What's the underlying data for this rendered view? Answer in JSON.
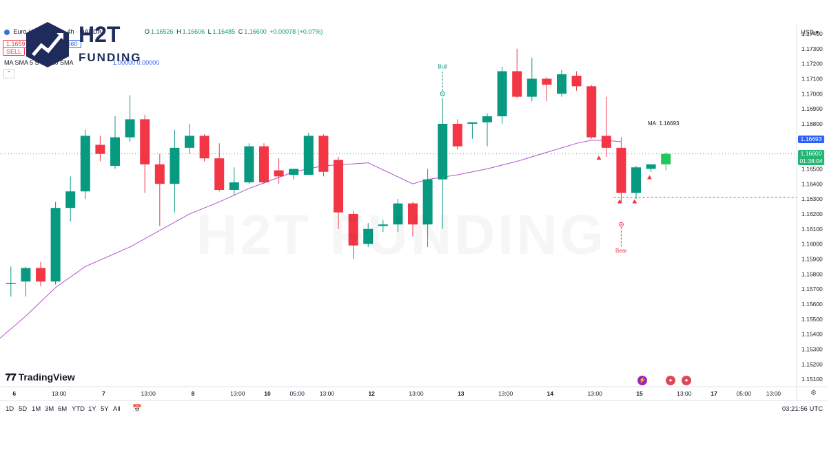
{
  "header": {
    "symbol": "Euro / U.S. Dollar · 4h · OANDA",
    "ohlc": {
      "o": "O",
      "o_val": "1.16526",
      "h": "H",
      "h_val": "1.16606",
      "l": "L",
      "l_val": "1.16485",
      "c": "C",
      "c_val": "1.16600",
      "chg": "+0.00078 (+0.07%)"
    },
    "sell_price": "1.1659",
    "sell_label": "SELL",
    "buy_price": "1.1660",
    "ma_line": "MA SMA 5 S MA 10 SMA",
    "ma_values": "1.00000  0.00000",
    "currency": "USD"
  },
  "brand": {
    "name_top": "H2T",
    "name_bottom": "FUNDING",
    "watermark": "H2T FUNDING",
    "tv_logo": "TradingView"
  },
  "bottom_bar": {
    "ranges": [
      "1D",
      "5D",
      "1M",
      "3M",
      "6M",
      "YTD",
      "1Y",
      "5Y",
      "All"
    ],
    "clock": "03:21:56 UTC"
  },
  "colors": {
    "up": "#089981",
    "down": "#f23645",
    "ma": "#b44fd1",
    "last_up": "#22c55e"
  },
  "chart_data": {
    "type": "candlestick",
    "ylim": [
      1.1505,
      1.1745
    ],
    "yticks": [
      1.151,
      1.152,
      1.153,
      1.154,
      1.155,
      1.156,
      1.157,
      1.158,
      1.159,
      1.16,
      1.161,
      1.162,
      1.163,
      1.164,
      1.165,
      1.166,
      1.167,
      1.168,
      1.169,
      1.17,
      1.171,
      1.172,
      1.173,
      1.174
    ],
    "ytick_labels": [
      "1.15100",
      "1.15200",
      "1.15300",
      "1.15400",
      "1.15500",
      "1.15600",
      "1.15700",
      "1.15800",
      "1.15900",
      "1.16000",
      "1.16100",
      "1.16200",
      "1.16300",
      "1.16400",
      "1.16500",
      "1.16600",
      "1.16700",
      "1.16800",
      "1.16900",
      "1.17000",
      "1.17100",
      "1.17200",
      "1.17300",
      "1.17400"
    ],
    "xticks": [
      {
        "label": "6",
        "idx": 0.5
      },
      {
        "label": "13:00",
        "idx": 3.5
      },
      {
        "label": "7",
        "idx": 6.5
      },
      {
        "label": "13:00",
        "idx": 9.5
      },
      {
        "label": "8",
        "idx": 12.5
      },
      {
        "label": "13:00",
        "idx": 15.5
      },
      {
        "label": "10",
        "idx": 17.5
      },
      {
        "label": "05:00",
        "idx": 19.5
      },
      {
        "label": "13:00",
        "idx": 21.5
      },
      {
        "label": "12",
        "idx": 24.5
      },
      {
        "label": "13:00",
        "idx": 27.5
      },
      {
        "label": "13",
        "idx": 30.5
      },
      {
        "label": "13:00",
        "idx": 33.5
      },
      {
        "label": "14",
        "idx": 36.5
      },
      {
        "label": "13:00",
        "idx": 39.5
      },
      {
        "label": "15",
        "idx": 42.5
      },
      {
        "label": "13:00",
        "idx": 45.5
      },
      {
        "label": "17",
        "idx": 47.5
      },
      {
        "label": "05:00",
        "idx": 49.5
      },
      {
        "label": "13:00",
        "idx": 51.5
      }
    ],
    "candles": [
      {
        "o": 1.1574,
        "h": 1.1585,
        "l": 1.1565,
        "c": 1.1574
      },
      {
        "o": 1.1575,
        "h": 1.1585,
        "l": 1.1565,
        "c": 1.1584
      },
      {
        "o": 1.1584,
        "h": 1.1588,
        "l": 1.1572,
        "c": 1.1575
      },
      {
        "o": 1.1575,
        "h": 1.1628,
        "l": 1.1573,
        "c": 1.1624
      },
      {
        "o": 1.1624,
        "h": 1.1645,
        "l": 1.1615,
        "c": 1.1635
      },
      {
        "o": 1.1635,
        "h": 1.1676,
        "l": 1.163,
        "c": 1.1672
      },
      {
        "o": 1.1666,
        "h": 1.1672,
        "l": 1.1655,
        "c": 1.166
      },
      {
        "o": 1.1652,
        "h": 1.1685,
        "l": 1.165,
        "c": 1.1671
      },
      {
        "o": 1.1671,
        "h": 1.1699,
        "l": 1.1668,
        "c": 1.1683
      },
      {
        "o": 1.1683,
        "h": 1.1686,
        "l": 1.1634,
        "c": 1.1653
      },
      {
        "o": 1.1653,
        "h": 1.166,
        "l": 1.1612,
        "c": 1.164
      },
      {
        "o": 1.164,
        "h": 1.1676,
        "l": 1.1621,
        "c": 1.1664
      },
      {
        "o": 1.1664,
        "h": 1.168,
        "l": 1.166,
        "c": 1.1672
      },
      {
        "o": 1.1672,
        "h": 1.1673,
        "l": 1.1655,
        "c": 1.1657
      },
      {
        "o": 1.1657,
        "h": 1.1667,
        "l": 1.1635,
        "c": 1.1636
      },
      {
        "o": 1.1636,
        "h": 1.1651,
        "l": 1.1632,
        "c": 1.1641
      },
      {
        "o": 1.1641,
        "h": 1.1667,
        "l": 1.164,
        "c": 1.1665
      },
      {
        "o": 1.1665,
        "h": 1.1667,
        "l": 1.164,
        "c": 1.1641
      },
      {
        "o": 1.1649,
        "h": 1.1657,
        "l": 1.164,
        "c": 1.1645
      },
      {
        "o": 1.1646,
        "h": 1.165,
        "l": 1.1643,
        "c": 1.165
      },
      {
        "o": 1.1646,
        "h": 1.1674,
        "l": 1.1646,
        "c": 1.1672
      },
      {
        "o": 1.1672,
        "h": 1.1673,
        "l": 1.1645,
        "c": 1.1648
      },
      {
        "o": 1.1656,
        "h": 1.1658,
        "l": 1.161,
        "c": 1.1621
      },
      {
        "o": 1.162,
        "h": 1.1622,
        "l": 1.159,
        "c": 1.1599
      },
      {
        "o": 1.16,
        "h": 1.1614,
        "l": 1.1598,
        "c": 1.161
      },
      {
        "o": 1.1612,
        "h": 1.1616,
        "l": 1.1608,
        "c": 1.1613
      },
      {
        "o": 1.1613,
        "h": 1.163,
        "l": 1.1608,
        "c": 1.1627
      },
      {
        "o": 1.1627,
        "h": 1.1628,
        "l": 1.1605,
        "c": 1.1613
      },
      {
        "o": 1.1613,
        "h": 1.165,
        "l": 1.1598,
        "c": 1.1643
      },
      {
        "o": 1.1643,
        "h": 1.1697,
        "l": 1.161,
        "c": 1.168
      },
      {
        "o": 1.168,
        "h": 1.1683,
        "l": 1.1663,
        "c": 1.1665
      },
      {
        "o": 1.168,
        "h": 1.1681,
        "l": 1.167,
        "c": 1.1681
      },
      {
        "o": 1.1681,
        "h": 1.1687,
        "l": 1.1665,
        "c": 1.1685
      },
      {
        "o": 1.1685,
        "h": 1.1718,
        "l": 1.168,
        "c": 1.1715
      },
      {
        "o": 1.1715,
        "h": 1.173,
        "l": 1.1697,
        "c": 1.1698
      },
      {
        "o": 1.1698,
        "h": 1.1724,
        "l": 1.1695,
        "c": 1.171
      },
      {
        "o": 1.171,
        "h": 1.1711,
        "l": 1.1695,
        "c": 1.1706
      },
      {
        "o": 1.17,
        "h": 1.1716,
        "l": 1.1698,
        "c": 1.1713
      },
      {
        "o": 1.1712,
        "h": 1.1715,
        "l": 1.1702,
        "c": 1.1705
      },
      {
        "o": 1.1705,
        "h": 1.1706,
        "l": 1.167,
        "c": 1.1671
      },
      {
        "o": 1.1672,
        "h": 1.1698,
        "l": 1.1658,
        "c": 1.1664
      },
      {
        "o": 1.1664,
        "h": 1.1671,
        "l": 1.1628,
        "c": 1.1634
      },
      {
        "o": 1.1634,
        "h": 1.1652,
        "l": 1.163,
        "c": 1.1651
      },
      {
        "o": 1.165,
        "h": 1.1653,
        "l": 1.1648,
        "c": 1.1653
      },
      {
        "o": 1.1653,
        "h": 1.1661,
        "l": 1.1649,
        "c": 1.166
      }
    ],
    "ma": [
      {
        "idx": -1,
        "v": 1.1535
      },
      {
        "idx": 1,
        "v": 1.1552
      },
      {
        "idx": 3,
        "v": 1.1571
      },
      {
        "idx": 5,
        "v": 1.1585
      },
      {
        "idx": 8,
        "v": 1.1598
      },
      {
        "idx": 10,
        "v": 1.1609
      },
      {
        "idx": 12,
        "v": 1.162
      },
      {
        "idx": 14,
        "v": 1.1628
      },
      {
        "idx": 16,
        "v": 1.1637
      },
      {
        "idx": 19,
        "v": 1.1648
      },
      {
        "idx": 21,
        "v": 1.1652
      },
      {
        "idx": 24,
        "v": 1.1654
      },
      {
        "idx": 27,
        "v": 1.164
      },
      {
        "idx": 28,
        "v": 1.1643
      },
      {
        "idx": 30,
        "v": 1.1646
      },
      {
        "idx": 32,
        "v": 1.165
      },
      {
        "idx": 34,
        "v": 1.1655
      },
      {
        "idx": 36,
        "v": 1.1661
      },
      {
        "idx": 38,
        "v": 1.1667
      },
      {
        "idx": 39,
        "v": 1.1669
      },
      {
        "idx": 40,
        "v": 1.1669
      },
      {
        "idx": 41,
        "v": 1.1668
      }
    ],
    "ma_label": "MA: 1.16693",
    "ma_value": "1.16693",
    "last_price": "1.16600",
    "countdown": "01:38:04",
    "support_level": 1.1631,
    "signals": [
      {
        "label": "Bull",
        "idx": 29,
        "price": 1.17
      },
      {
        "label": "Bear",
        "idx": 41,
        "price": 1.1613
      }
    ],
    "triangles": [
      {
        "idx": 39.5,
        "price": 1.1657
      },
      {
        "idx": 40.9,
        "price": 1.1628
      },
      {
        "idx": 41.9,
        "price": 1.1628
      },
      {
        "idx": 42.9,
        "price": 1.1644
      }
    ]
  }
}
